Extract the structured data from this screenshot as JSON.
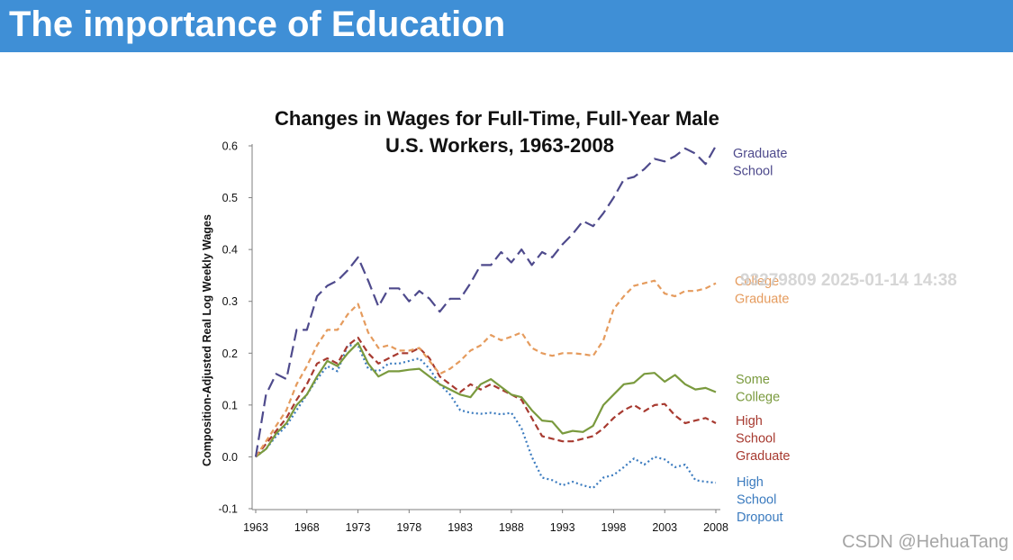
{
  "slide": {
    "title": "The importance of Education"
  },
  "chart_data": {
    "type": "line",
    "title_lines": [
      "Changes in Wages for Full-Time, Full-Year Male",
      "U.S. Workers, 1963-2008"
    ],
    "ylabel": "Composition-Adjusted Real Log Weekly Wages",
    "xlim": [
      1963,
      2008
    ],
    "ylim": [
      -0.1,
      0.6
    ],
    "x_ticks": [
      1963,
      1968,
      1973,
      1978,
      1983,
      1988,
      1993,
      1998,
      2003,
      2008
    ],
    "y_ticks": [
      "-0.1",
      "0.0",
      "0.1",
      "0.2",
      "0.3",
      "0.4",
      "0.5",
      "0.6"
    ],
    "grid": false,
    "x": [
      1963,
      1964,
      1965,
      1966,
      1967,
      1968,
      1969,
      1970,
      1971,
      1972,
      1973,
      1974,
      1975,
      1976,
      1977,
      1978,
      1979,
      1980,
      1981,
      1982,
      1983,
      1984,
      1985,
      1986,
      1987,
      1988,
      1989,
      1990,
      1991,
      1992,
      1993,
      1994,
      1995,
      1996,
      1997,
      1998,
      1999,
      2000,
      2001,
      2002,
      2003,
      2004,
      2005,
      2006,
      2007,
      2008
    ],
    "series": [
      {
        "name": "Graduate\nSchool",
        "color": "#4e4a8c",
        "values": [
          0.0,
          0.12,
          0.16,
          0.15,
          0.245,
          0.245,
          0.31,
          0.33,
          0.34,
          0.36,
          0.385,
          0.34,
          0.29,
          0.325,
          0.325,
          0.3,
          0.32,
          0.305,
          0.28,
          0.305,
          0.305,
          0.335,
          0.37,
          0.37,
          0.395,
          0.375,
          0.4,
          0.37,
          0.395,
          0.385,
          0.41,
          0.43,
          0.455,
          0.445,
          0.47,
          0.5,
          0.535,
          0.54,
          0.555,
          0.575,
          0.57,
          0.58,
          0.595,
          0.585,
          0.565,
          0.6
        ]
      },
      {
        "name": "College\nGraduate",
        "color": "#e59b5d",
        "values": [
          0.0,
          0.03,
          0.06,
          0.09,
          0.14,
          0.175,
          0.215,
          0.245,
          0.245,
          0.275,
          0.295,
          0.24,
          0.21,
          0.215,
          0.205,
          0.205,
          0.21,
          0.185,
          0.16,
          0.17,
          0.185,
          0.205,
          0.215,
          0.235,
          0.225,
          0.232,
          0.24,
          0.21,
          0.2,
          0.195,
          0.2,
          0.2,
          0.198,
          0.195,
          0.225,
          0.285,
          0.31,
          0.33,
          0.335,
          0.34,
          0.315,
          0.31,
          0.32,
          0.32,
          0.325,
          0.335
        ]
      },
      {
        "name": "Some\nCollege",
        "color": "#7a9a3e",
        "values": [
          0.0,
          0.015,
          0.045,
          0.065,
          0.1,
          0.12,
          0.155,
          0.185,
          0.175,
          0.2,
          0.22,
          0.18,
          0.155,
          0.165,
          0.165,
          0.168,
          0.17,
          0.155,
          0.14,
          0.13,
          0.12,
          0.115,
          0.14,
          0.15,
          0.135,
          0.12,
          0.115,
          0.09,
          0.07,
          0.068,
          0.045,
          0.05,
          0.048,
          0.06,
          0.1,
          0.12,
          0.14,
          0.143,
          0.16,
          0.162,
          0.145,
          0.158,
          0.14,
          0.13,
          0.133,
          0.125
        ]
      },
      {
        "name": "High\nSchool\nGraduate",
        "color": "#a73a30",
        "values": [
          0.0,
          0.025,
          0.05,
          0.075,
          0.11,
          0.14,
          0.18,
          0.19,
          0.18,
          0.215,
          0.23,
          0.2,
          0.18,
          0.19,
          0.2,
          0.2,
          0.21,
          0.19,
          0.155,
          0.14,
          0.125,
          0.14,
          0.13,
          0.14,
          0.13,
          0.12,
          0.11,
          0.075,
          0.04,
          0.035,
          0.03,
          0.03,
          0.035,
          0.04,
          0.055,
          0.075,
          0.09,
          0.1,
          0.088,
          0.1,
          0.102,
          0.08,
          0.065,
          0.07,
          0.075,
          0.065
        ]
      },
      {
        "name": "High\nSchool\nDropout",
        "color": "#3b7bbf",
        "values": [
          0.0,
          0.015,
          0.04,
          0.06,
          0.09,
          0.12,
          0.15,
          0.175,
          0.165,
          0.215,
          0.215,
          0.17,
          0.165,
          0.18,
          0.18,
          0.185,
          0.19,
          0.17,
          0.14,
          0.12,
          0.09,
          0.085,
          0.083,
          0.085,
          0.082,
          0.085,
          0.055,
          0.0,
          -0.04,
          -0.045,
          -0.055,
          -0.048,
          -0.055,
          -0.06,
          -0.04,
          -0.035,
          -0.02,
          -0.003,
          -0.015,
          0.0,
          -0.005,
          -0.02,
          -0.015,
          -0.045,
          -0.048,
          -0.05
        ]
      }
    ]
  },
  "watermarks": {
    "overlay": "93279809 2025-01-14 14:38",
    "credit": "CSDN @HehuaTang"
  }
}
